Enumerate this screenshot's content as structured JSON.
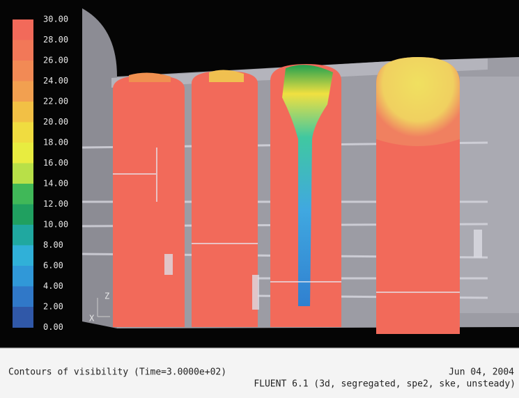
{
  "colorbar": {
    "labels": [
      "30.00",
      "28.00",
      "26.00",
      "24.00",
      "22.00",
      "20.00",
      "18.00",
      "16.00",
      "14.00",
      "12.00",
      "10.00",
      "8.00",
      "6.00",
      "4.00",
      "2.00",
      "0.00"
    ]
  },
  "axes": {
    "z": "Z",
    "x": "X"
  },
  "caption": {
    "title": "Contours of visibility  (Time=3.0000e+02)",
    "date": "Jun 04, 2004",
    "solver": "FLUENT 6.1 (3d, segregated, spe2, ske, unsteady)"
  }
}
